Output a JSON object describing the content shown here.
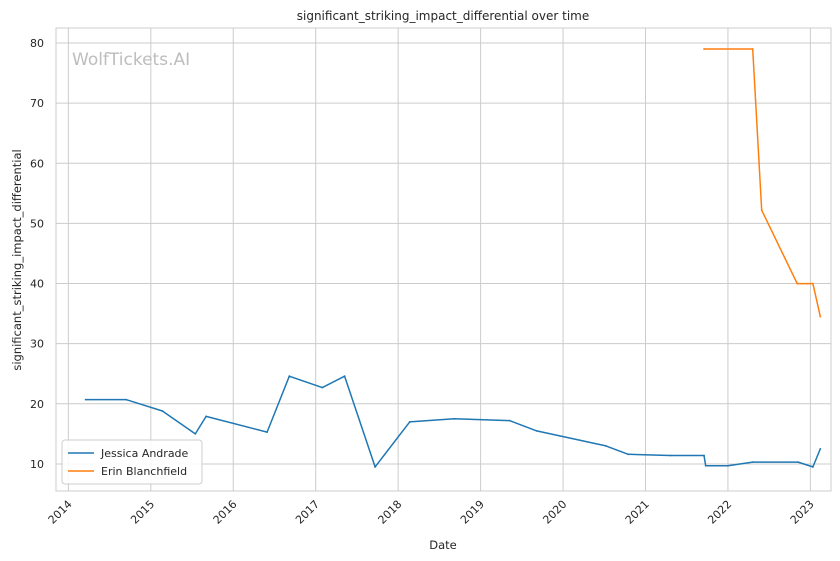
{
  "chart_data": {
    "type": "line",
    "title": "significant_striking_impact_differential over time",
    "xlabel": "Date",
    "ylabel": "significant_striking_impact_differential",
    "watermark": "WolfTickets.AI",
    "xlim": [
      2013.85,
      2023.25
    ],
    "ylim": [
      5.5,
      82.5
    ],
    "x_ticks": [
      2014,
      2015,
      2016,
      2017,
      2018,
      2019,
      2020,
      2021,
      2022,
      2023
    ],
    "y_ticks": [
      10,
      20,
      30,
      40,
      50,
      60,
      70,
      80
    ],
    "grid": true,
    "legend_position": "lower-left",
    "series": [
      {
        "name": "Jessica Andrade",
        "color": "#1f77b4",
        "points": [
          [
            2014.21,
            20.7
          ],
          [
            2014.7,
            20.7
          ],
          [
            2015.14,
            18.8
          ],
          [
            2015.54,
            15.0
          ],
          [
            2015.67,
            17.9
          ],
          [
            2016.41,
            15.3
          ],
          [
            2016.68,
            24.6
          ],
          [
            2017.08,
            22.7
          ],
          [
            2017.35,
            24.6
          ],
          [
            2017.72,
            9.5
          ],
          [
            2018.14,
            17.0
          ],
          [
            2018.68,
            17.5
          ],
          [
            2019.35,
            17.2
          ],
          [
            2019.68,
            15.5
          ],
          [
            2020.52,
            13.0
          ],
          [
            2020.79,
            11.6
          ],
          [
            2021.3,
            11.4
          ],
          [
            2021.71,
            11.4
          ],
          [
            2021.73,
            9.7
          ],
          [
            2022.0,
            9.7
          ],
          [
            2022.3,
            10.3
          ],
          [
            2022.85,
            10.3
          ],
          [
            2023.03,
            9.5
          ],
          [
            2023.12,
            12.5
          ]
        ]
      },
      {
        "name": "Erin Blanchfield",
        "color": "#ff7f0e",
        "points": [
          [
            2021.71,
            79.0
          ],
          [
            2022.3,
            79.0
          ],
          [
            2022.41,
            52.2
          ],
          [
            2022.84,
            40.0
          ],
          [
            2023.03,
            40.0
          ],
          [
            2023.12,
            34.5
          ]
        ]
      }
    ]
  }
}
